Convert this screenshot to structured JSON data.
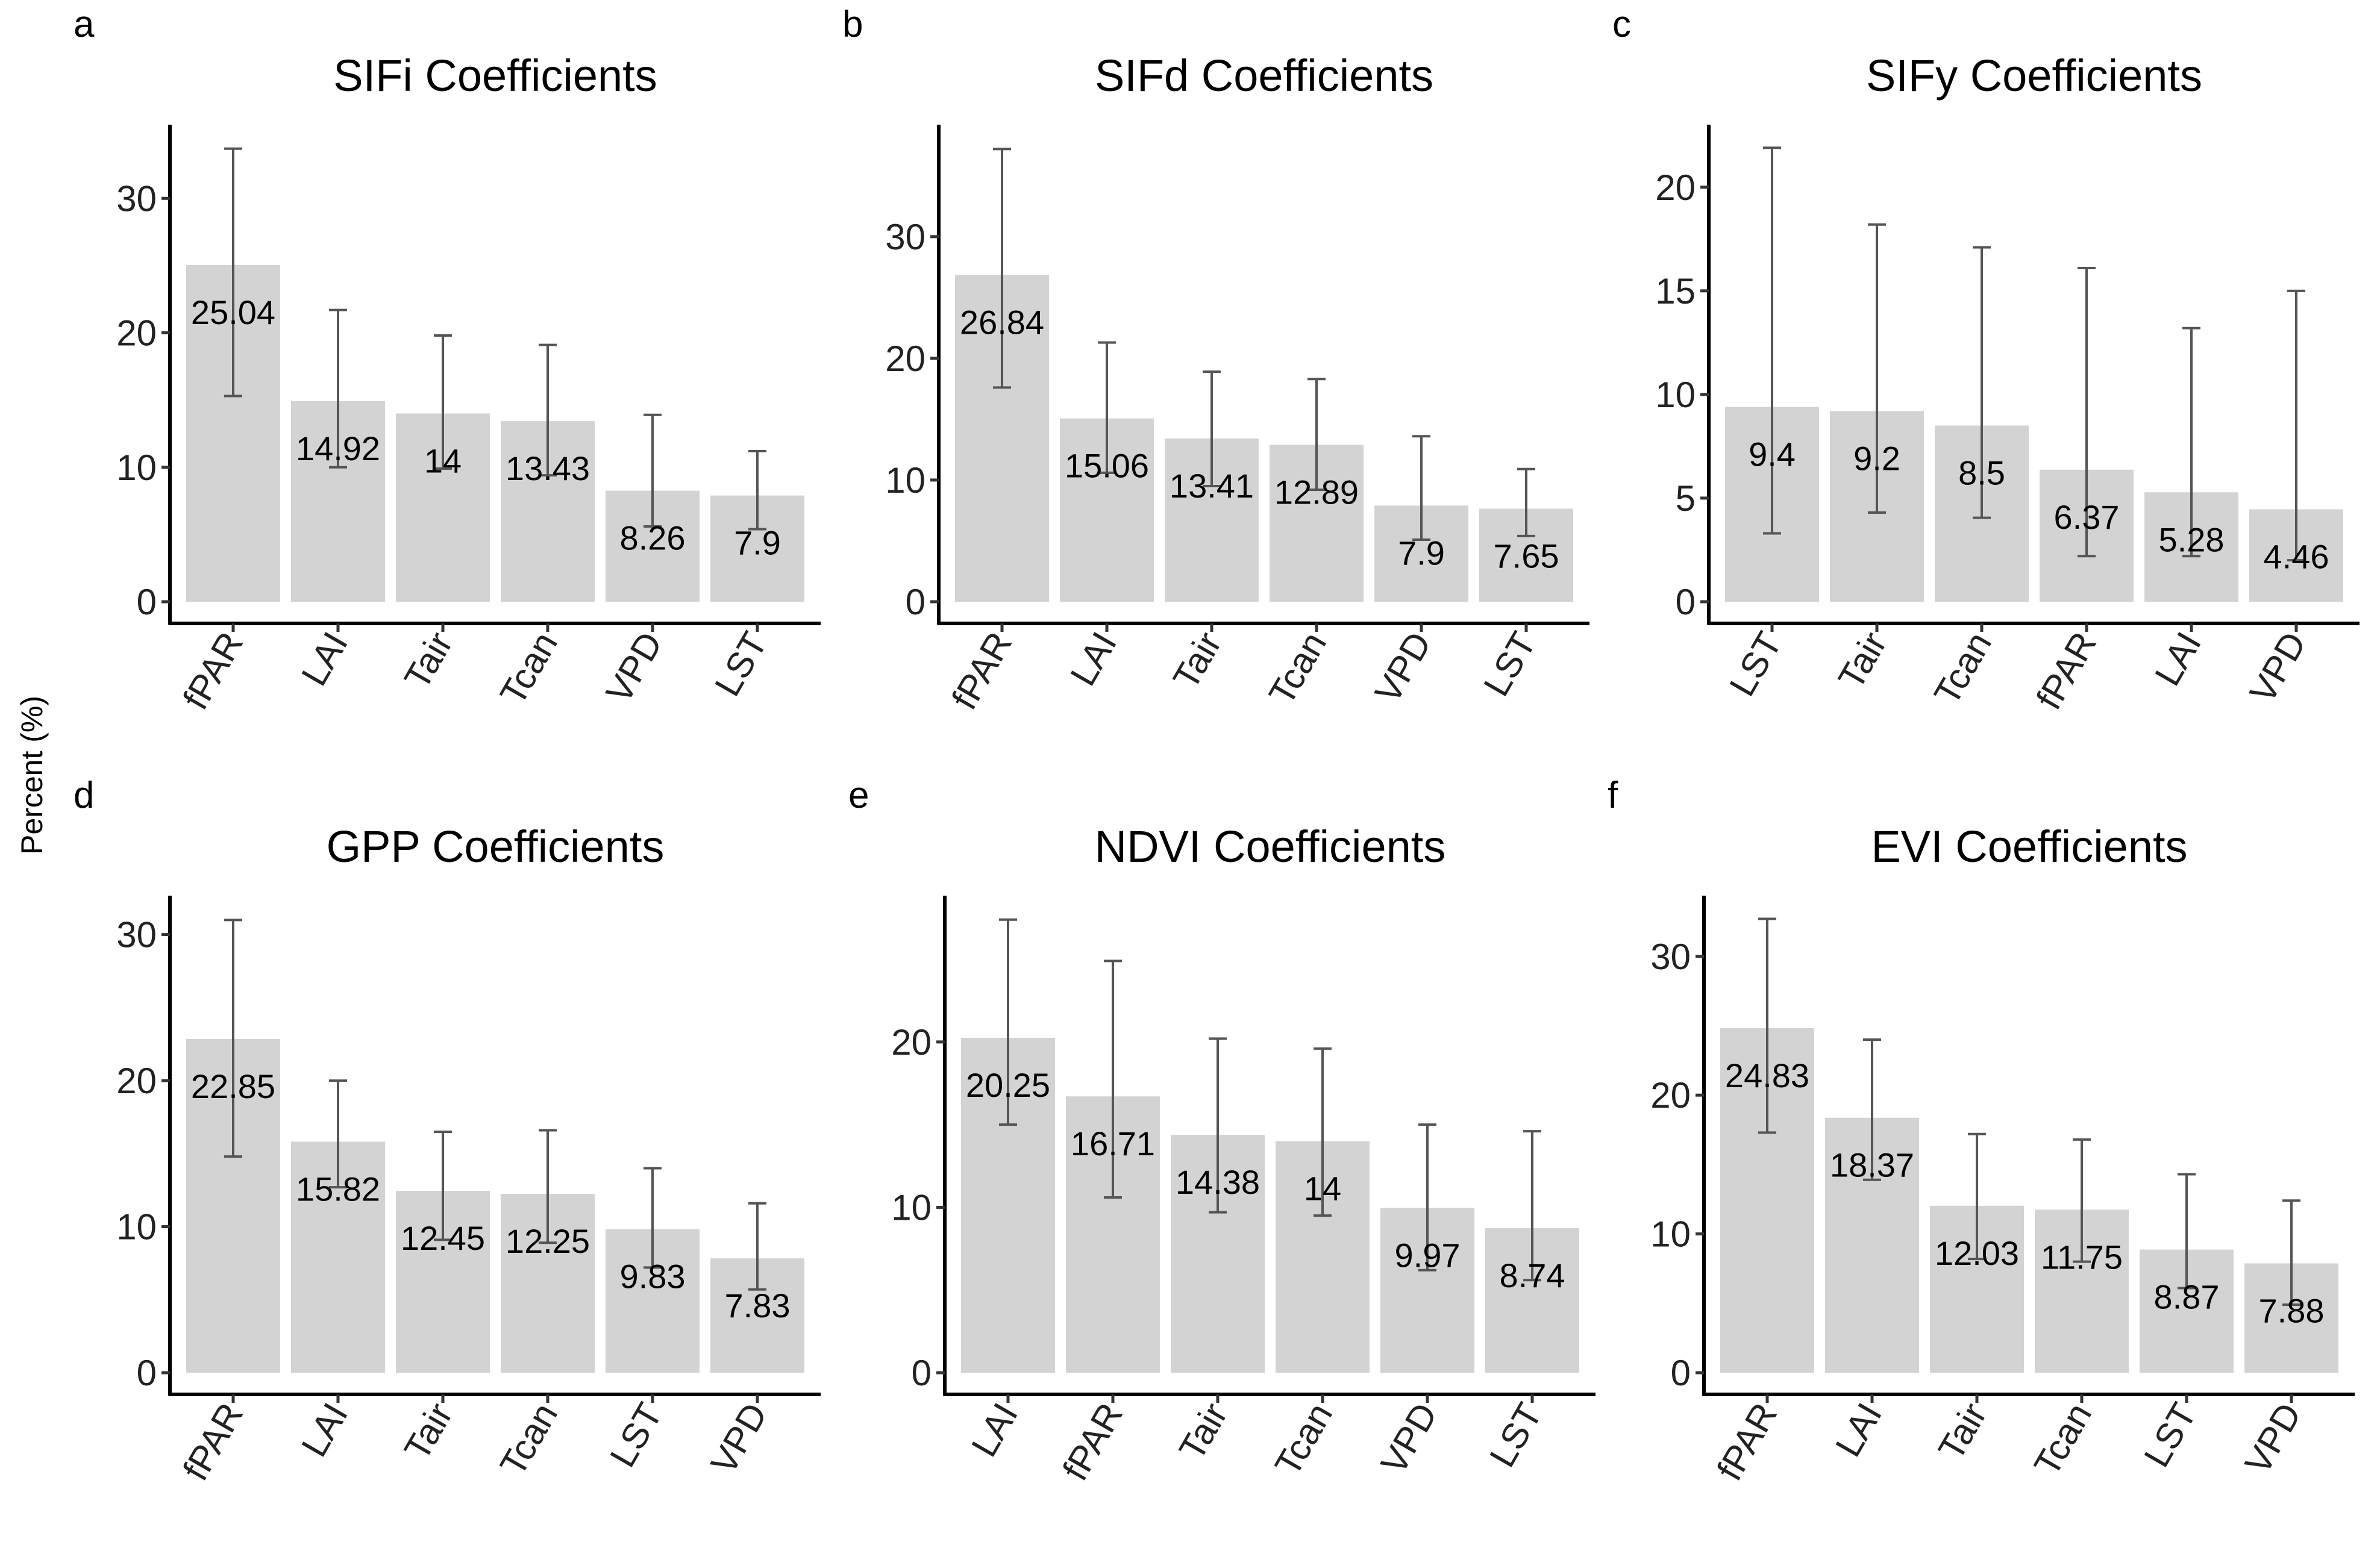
{
  "colors": {
    "bar": "#d3d3d3",
    "errorbar": "#555555",
    "axis": "#000000"
  },
  "ylabel": "Percent (%)",
  "chart_data": [
    {
      "type": "bar",
      "letter": "a",
      "title": "SIFi Coefficients",
      "ylim": [
        0,
        35.3
      ],
      "yticks": [
        0,
        10,
        20,
        30
      ],
      "categories": [
        "fPAR",
        "LAI",
        "Tair",
        "Tcan",
        "VPD",
        "LST"
      ],
      "values": [
        25.04,
        14.92,
        14,
        13.43,
        8.26,
        7.9
      ],
      "labels": [
        "25.04",
        "14.92",
        "14",
        "13.43",
        "8.26",
        "7.9"
      ],
      "err_low": [
        15.3,
        10.0,
        9.9,
        9.4,
        5.6,
        5.4
      ],
      "err_high": [
        33.7,
        21.7,
        19.8,
        19.1,
        13.9,
        11.2
      ]
    },
    {
      "type": "bar",
      "letter": "b",
      "title": "SIFd Coefficients",
      "ylim": [
        0,
        39.0
      ],
      "yticks": [
        0,
        10,
        20,
        30
      ],
      "categories": [
        "fPAR",
        "LAI",
        "Tair",
        "Tcan",
        "VPD",
        "LST"
      ],
      "values": [
        26.84,
        15.06,
        13.41,
        12.89,
        7.9,
        7.65
      ],
      "labels": [
        "26.84",
        "15.06",
        "13.41",
        "12.89",
        "7.9",
        "7.65"
      ],
      "err_low": [
        17.6,
        10.6,
        9.5,
        9.2,
        5.1,
        5.4
      ],
      "err_high": [
        37.2,
        21.3,
        18.9,
        18.3,
        13.6,
        10.9
      ]
    },
    {
      "type": "bar",
      "letter": "c",
      "title": "SIFy Coefficients",
      "ylim": [
        0,
        22.9
      ],
      "yticks": [
        0,
        5,
        10,
        15,
        20
      ],
      "categories": [
        "LST",
        "Tair",
        "Tcan",
        "fPAR",
        "LAI",
        "VPD"
      ],
      "values": [
        9.4,
        9.2,
        8.5,
        6.37,
        5.28,
        4.46
      ],
      "labels": [
        "9.4",
        "9.2",
        "8.5",
        "6.37",
        "5.28",
        "4.46"
      ],
      "err_low": [
        3.3,
        4.3,
        4.05,
        2.2,
        2.2,
        2.0
      ],
      "err_high": [
        21.9,
        18.2,
        17.1,
        16.1,
        13.2,
        15.0
      ]
    },
    {
      "type": "bar",
      "letter": "d",
      "title": "GPP Coefficients",
      "ylim": [
        0,
        32.5
      ],
      "yticks": [
        0,
        10,
        20,
        30
      ],
      "categories": [
        "fPAR",
        "LAI",
        "Tair",
        "Tcan",
        "LST",
        "VPD"
      ],
      "values": [
        22.85,
        15.82,
        12.45,
        12.25,
        9.83,
        7.83
      ],
      "labels": [
        "22.85",
        "15.82",
        "12.45",
        "12.25",
        "9.83",
        "7.83"
      ],
      "err_low": [
        14.8,
        12.7,
        9.1,
        8.9,
        7.2,
        5.7
      ],
      "err_high": [
        31.0,
        20.0,
        16.5,
        16.6,
        14.0,
        11.6
      ]
    },
    {
      "type": "bar",
      "letter": "e",
      "title": "NDVI Coefficients",
      "ylim": [
        0,
        28.7
      ],
      "yticks": [
        0,
        10,
        20
      ],
      "categories": [
        "LAI",
        "fPAR",
        "Tair",
        "Tcan",
        "VPD",
        "LST"
      ],
      "values": [
        20.25,
        16.71,
        14.38,
        14,
        9.97,
        8.74
      ],
      "labels": [
        "20.25",
        "16.71",
        "14.38",
        "14",
        "9.97",
        "8.74"
      ],
      "err_low": [
        15.0,
        10.6,
        9.7,
        9.5,
        6.2,
        5.6
      ],
      "err_high": [
        27.4,
        24.9,
        20.2,
        19.6,
        15.0,
        14.6
      ]
    },
    {
      "type": "bar",
      "letter": "f",
      "title": "EVI Coefficients",
      "ylim": [
        0,
        34.2
      ],
      "yticks": [
        0,
        10,
        20,
        30
      ],
      "categories": [
        "fPAR",
        "LAI",
        "Tair",
        "Tcan",
        "LST",
        "VPD"
      ],
      "values": [
        24.83,
        18.37,
        12.03,
        11.75,
        8.87,
        7.88
      ],
      "labels": [
        "24.83",
        "18.37",
        "12.03",
        "11.75",
        "8.87",
        "7.88"
      ],
      "err_low": [
        17.3,
        13.9,
        8.2,
        8.0,
        6.1,
        4.9
      ],
      "err_high": [
        32.7,
        24.0,
        17.2,
        16.8,
        14.3,
        12.4
      ]
    }
  ]
}
